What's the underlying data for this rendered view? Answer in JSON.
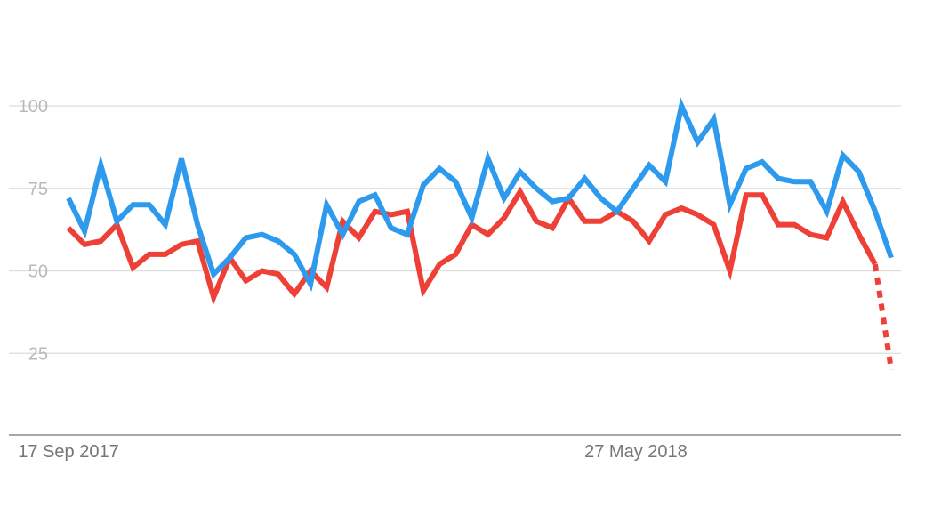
{
  "chart_data": {
    "type": "line",
    "title": "",
    "xlabel": "",
    "ylabel": "",
    "ylim": [
      0,
      100
    ],
    "y_ticks": [
      100,
      75,
      50,
      25
    ],
    "x_tick_labels": [
      "17 Sep 2017",
      "27 May 2018"
    ],
    "x_tick_label_indices": [
      0,
      36
    ],
    "grid": "horizontal",
    "series": [
      {
        "color": "#2d9aed",
        "style": "solid",
        "values": [
          72,
          62,
          82,
          65,
          70,
          70,
          64,
          84,
          64,
          49,
          54,
          60,
          61,
          59,
          55,
          46,
          70,
          61,
          71,
          73,
          63,
          61,
          76,
          81,
          77,
          66,
          84,
          72,
          80,
          75,
          71,
          72,
          78,
          72,
          68,
          75,
          82,
          77,
          100,
          89,
          96,
          70,
          81,
          83,
          78,
          77,
          77,
          68,
          85,
          80,
          68,
          54
        ]
      },
      {
        "color": "#ee4036",
        "style": "solid",
        "partial_last": true,
        "values": [
          63,
          58,
          59,
          64,
          51,
          55,
          55,
          58,
          59,
          42,
          54,
          47,
          50,
          49,
          43,
          50,
          45,
          65,
          60,
          68,
          67,
          68,
          44,
          52,
          55,
          64,
          61,
          66,
          74,
          65,
          63,
          72,
          65,
          65,
          68,
          65,
          59,
          67,
          69,
          67,
          64,
          50,
          73,
          73,
          64,
          64,
          61,
          60,
          71,
          61,
          52,
          20
        ]
      }
    ]
  }
}
